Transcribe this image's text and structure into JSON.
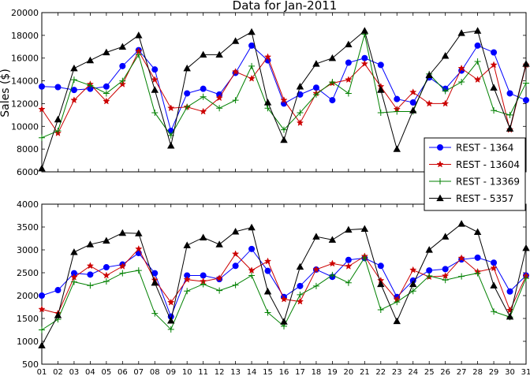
{
  "chart_data": [
    {
      "type": "line",
      "title": "Data for Jan-2011",
      "xlabel": "",
      "ylabel": "Sales ($)",
      "xlim": [
        1,
        31
      ],
      "ylim": [
        6000,
        20000
      ],
      "yticks": [
        6000,
        8000,
        10000,
        12000,
        14000,
        16000,
        18000,
        20000
      ],
      "x": [
        1,
        2,
        3,
        4,
        5,
        6,
        7,
        8,
        9,
        10,
        11,
        12,
        13,
        14,
        15,
        16,
        17,
        18,
        19,
        20,
        21,
        22,
        23,
        24,
        25,
        26,
        27,
        28,
        29,
        30,
        31
      ],
      "legend": {
        "placement": "lower-right"
      },
      "series": [
        {
          "name": "REST - 1364",
          "color": "#0000ff",
          "marker": "circle",
          "values": [
            13500,
            13450,
            13200,
            13300,
            13500,
            15300,
            16700,
            15000,
            9600,
            12900,
            13300,
            12800,
            14700,
            17100,
            15800,
            12000,
            12800,
            13400,
            12300,
            15600,
            16000,
            15400,
            12400,
            12100,
            14300,
            13300,
            14900,
            17100,
            16500,
            12900,
            12300
          ]
        },
        {
          "name": "REST - 13604",
          "color": "#cc0000",
          "marker": "star",
          "values": [
            11500,
            9400,
            12300,
            13700,
            12200,
            13700,
            16600,
            14100,
            11600,
            11700,
            11300,
            12500,
            14800,
            14200,
            16100,
            12300,
            10300,
            12900,
            13800,
            14100,
            15500,
            13500,
            11500,
            13000,
            12000,
            12000,
            15100,
            14100,
            15400,
            9700,
            15400
          ]
        },
        {
          "name": "REST - 13369",
          "color": "#008000",
          "marker": "plus",
          "values": [
            9000,
            9600,
            14100,
            13600,
            12900,
            14000,
            16300,
            11200,
            9200,
            11700,
            12600,
            11600,
            12300,
            15300,
            11600,
            9700,
            11200,
            12800,
            13900,
            12900,
            18100,
            11200,
            11300,
            11300,
            14600,
            13100,
            13900,
            15700,
            11400,
            11000,
            13800
          ]
        },
        {
          "name": "REST - 5357",
          "color": "#000000",
          "marker": "triangle",
          "values": [
            6300,
            10600,
            15100,
            15800,
            16500,
            17000,
            18000,
            13200,
            8300,
            15100,
            16300,
            16300,
            17500,
            18300,
            12100,
            8800,
            13500,
            15500,
            16000,
            17200,
            18400,
            13200,
            8000,
            11400,
            14500,
            16200,
            18200,
            18400,
            13400,
            9800,
            15500
          ]
        }
      ]
    },
    {
      "type": "line",
      "title": "",
      "xlabel": "",
      "ylabel": "",
      "xlim": [
        1,
        31
      ],
      "ylim": [
        500,
        4000
      ],
      "yticks": [
        500,
        1000,
        1500,
        2000,
        2500,
        3000,
        3500,
        4000
      ],
      "x": [
        1,
        2,
        3,
        4,
        5,
        6,
        7,
        8,
        9,
        10,
        11,
        12,
        13,
        14,
        15,
        16,
        17,
        18,
        19,
        20,
        21,
        22,
        23,
        24,
        25,
        26,
        27,
        28,
        29,
        30,
        31
      ],
      "xticklabels": [
        "01",
        "02",
        "03",
        "04",
        "05",
        "06",
        "07",
        "08",
        "09",
        "10",
        "11",
        "12",
        "13",
        "14",
        "15",
        "16",
        "17",
        "18",
        "19",
        "20",
        "21",
        "22",
        "23",
        "24",
        "25",
        "26",
        "27",
        "28",
        "29",
        "30",
        "31"
      ],
      "series": [
        {
          "name": "REST - 1364",
          "color": "#0000ff",
          "marker": "circle",
          "values": [
            2000,
            2120,
            2490,
            2460,
            2620,
            2680,
            2930,
            2490,
            1540,
            2440,
            2440,
            2360,
            2650,
            3020,
            2540,
            1970,
            2210,
            2570,
            2410,
            2780,
            2820,
            2650,
            1970,
            2330,
            2550,
            2580,
            2790,
            2830,
            2720,
            2090,
            2440
          ]
        },
        {
          "name": "REST - 13604",
          "color": "#cc0000",
          "marker": "star",
          "values": [
            1700,
            1610,
            2400,
            2650,
            2440,
            2640,
            3020,
            2340,
            1850,
            2350,
            2310,
            2380,
            2910,
            2550,
            2750,
            1920,
            1870,
            2570,
            2700,
            2640,
            2860,
            2330,
            1910,
            2560,
            2410,
            2430,
            2820,
            2520,
            2600,
            1680,
            2430
          ]
        },
        {
          "name": "REST - 13369",
          "color": "#008000",
          "marker": "plus",
          "values": [
            1250,
            1480,
            2300,
            2220,
            2310,
            2490,
            2550,
            1610,
            1260,
            2100,
            2250,
            2110,
            2230,
            2440,
            1630,
            1330,
            2020,
            2210,
            2450,
            2280,
            2830,
            1690,
            1860,
            2100,
            2430,
            2340,
            2420,
            2490,
            1650,
            1530,
            2380
          ]
        },
        {
          "name": "REST - 5357",
          "color": "#000000",
          "marker": "triangle",
          "values": [
            910,
            1570,
            2950,
            3120,
            3200,
            3370,
            3360,
            2280,
            1450,
            3100,
            3270,
            3120,
            3400,
            3490,
            2090,
            1430,
            2630,
            3290,
            3220,
            3440,
            3460,
            2250,
            1440,
            2250,
            3000,
            3290,
            3570,
            3390,
            2220,
            1540,
            3040
          ]
        }
      ]
    }
  ]
}
